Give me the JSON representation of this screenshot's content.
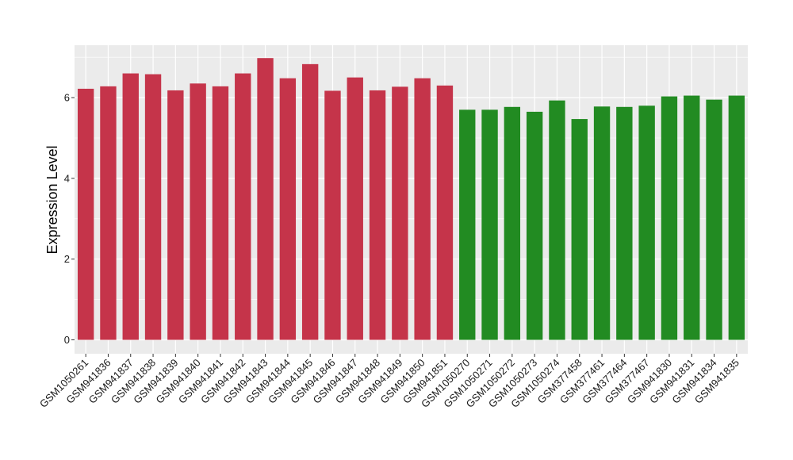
{
  "chart_data": {
    "type": "bar",
    "title": "",
    "xlabel": "",
    "ylabel": "Expression Level",
    "ylim": [
      0,
      7.3
    ],
    "yticks": [
      0,
      2,
      4,
      6
    ],
    "grid": true,
    "legend": "none",
    "categories": [
      "GSM1050261",
      "GSM941836",
      "GSM941837",
      "GSM941838",
      "GSM941839",
      "GSM941840",
      "GSM941841",
      "GSM941842",
      "GSM941843",
      "GSM941844",
      "GSM941845",
      "GSM941846",
      "GSM941847",
      "GSM941848",
      "GSM941849",
      "GSM941850",
      "GSM941851",
      "GSM1050270",
      "GSM1050271",
      "GSM1050272",
      "GSM1050273",
      "GSM1050274",
      "GSM377458",
      "GSM377461",
      "GSM377464",
      "GSM377467",
      "GSM941830",
      "GSM941831",
      "GSM941834",
      "GSM941835"
    ],
    "values": [
      6.22,
      6.28,
      6.6,
      6.58,
      6.18,
      6.35,
      6.28,
      6.6,
      6.98,
      6.48,
      6.83,
      6.17,
      6.5,
      6.18,
      6.27,
      6.48,
      6.3,
      5.7,
      5.7,
      5.77,
      5.65,
      5.93,
      5.47,
      5.78,
      5.77,
      5.8,
      6.03,
      6.05,
      5.95,
      6.05
    ],
    "bar_colors": [
      "#c5344a",
      "#c5344a",
      "#c5344a",
      "#c5344a",
      "#c5344a",
      "#c5344a",
      "#c5344a",
      "#c5344a",
      "#c5344a",
      "#c5344a",
      "#c5344a",
      "#c5344a",
      "#c5344a",
      "#c5344a",
      "#c5344a",
      "#c5344a",
      "#c5344a",
      "#228b22",
      "#228b22",
      "#228b22",
      "#228b22",
      "#228b22",
      "#228b22",
      "#228b22",
      "#228b22",
      "#228b22",
      "#228b22",
      "#228b22",
      "#228b22",
      "#228b22"
    ],
    "panel_background": "#ebebeb",
    "gridline_color": "#ffffff"
  }
}
